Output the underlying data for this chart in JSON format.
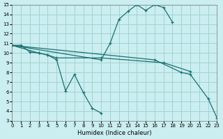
{
  "xlabel": "Humidex (Indice chaleur)",
  "xlim": [
    0,
    23
  ],
  "ylim": [
    3,
    15
  ],
  "xticks": [
    0,
    1,
    2,
    3,
    4,
    5,
    6,
    7,
    8,
    9,
    10,
    11,
    12,
    13,
    14,
    15,
    16,
    17,
    18,
    19,
    20,
    21,
    22,
    23
  ],
  "yticks": [
    3,
    4,
    5,
    6,
    7,
    8,
    9,
    10,
    11,
    12,
    13,
    14,
    15
  ],
  "bg_color": "#cbeef0",
  "grid_color": "#9dcece",
  "line_color": "#1a7070",
  "lines": [
    {
      "x": [
        0,
        1,
        2,
        3,
        4,
        5,
        6,
        7,
        8,
        9,
        10
      ],
      "y": [
        10.8,
        10.8,
        10.1,
        10.0,
        9.8,
        9.3,
        6.1,
        7.8,
        5.9,
        4.3,
        3.8
      ]
    },
    {
      "x": [
        0,
        10,
        11,
        12,
        13,
        14,
        15,
        16,
        17,
        18
      ],
      "y": [
        10.8,
        9.3,
        11.0,
        13.5,
        14.3,
        15.0,
        14.4,
        15.0,
        14.7,
        13.2
      ]
    },
    {
      "x": [
        0,
        3,
        4,
        5,
        10,
        17,
        20
      ],
      "y": [
        10.8,
        10.0,
        9.8,
        9.5,
        9.5,
        9.0,
        8.1
      ]
    },
    {
      "x": [
        0,
        16,
        19,
        20,
        22,
        23
      ],
      "y": [
        10.8,
        9.3,
        8.0,
        7.8,
        5.3,
        3.3
      ]
    }
  ]
}
